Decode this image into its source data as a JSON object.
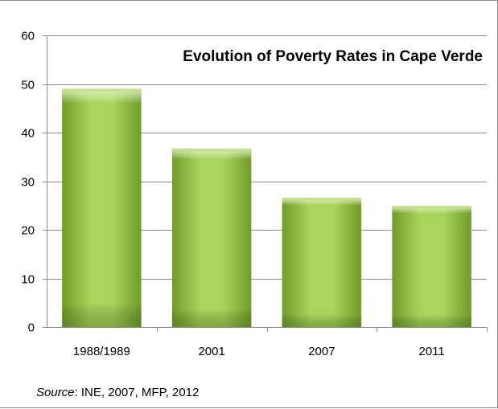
{
  "chart_data": {
    "type": "bar",
    "title": "Evolution of Poverty Rates in Cape Verde",
    "categories": [
      "1988/1989",
      "2001",
      "2007",
      "2011"
    ],
    "values": [
      49,
      36.7,
      26.6,
      24.9
    ],
    "ylim": [
      0,
      60
    ],
    "yticks": [
      0,
      10,
      20,
      30,
      40,
      50,
      60
    ],
    "grid": true,
    "legend": "none",
    "bar_color": "#8dc63f",
    "bar_top_color": "#c5e08a",
    "bar_bottom_color": "#5e8c1f"
  },
  "source": {
    "label": "Source",
    "text": ": INE, 2007, MFP, 2012"
  }
}
